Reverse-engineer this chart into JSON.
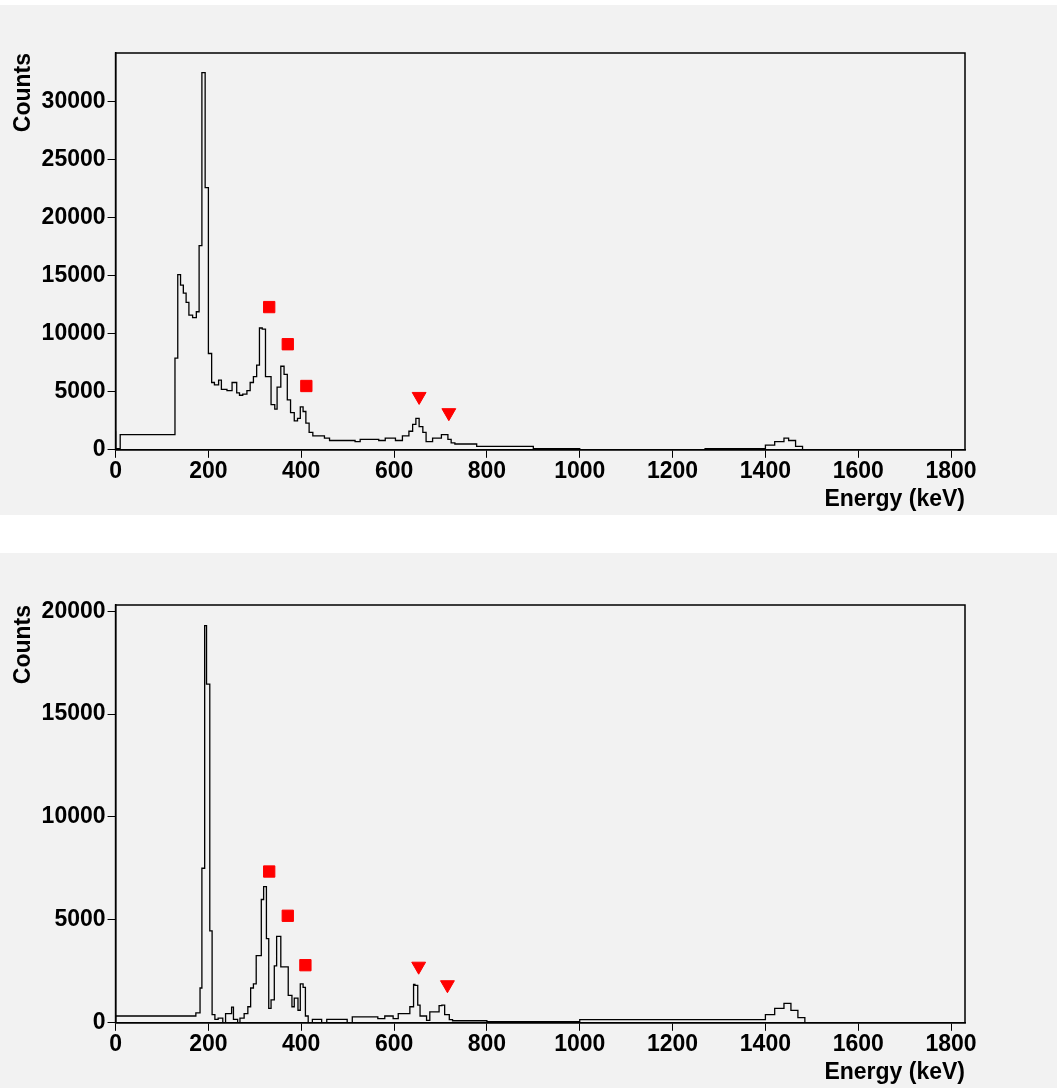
{
  "chart_data": [
    {
      "type": "step",
      "xlabel": "Energy (keV)",
      "ylabel": "Counts",
      "xlim": [
        0,
        1830
      ],
      "xticks": [
        0,
        200,
        400,
        600,
        800,
        1000,
        1200,
        1400,
        1600,
        1800
      ],
      "ylim": [
        0,
        34200
      ],
      "yticks": [
        0,
        5000,
        10000,
        15000,
        20000,
        25000,
        30000
      ],
      "grid": false,
      "series": [
        {
          "type": "step",
          "color": "#000000",
          "x": [
            0,
            10,
            128,
            134,
            140,
            146,
            152,
            158,
            166,
            174,
            180,
            186,
            193,
            200,
            207,
            213,
            222,
            228,
            240,
            251,
            261,
            267,
            274,
            283,
            290,
            297,
            304,
            310,
            316,
            323,
            335,
            343,
            348,
            356,
            363,
            370,
            377,
            385,
            392,
            398,
            404,
            410,
            417,
            425,
            450,
            461,
            516,
            527,
            567,
            581,
            603,
            618,
            632,
            640,
            647,
            654,
            662,
            669,
            683,
            702,
            709,
            716,
            723,
            731,
            753,
            778,
            900,
            1000,
            1270,
            1400,
            1420,
            1440,
            1450,
            1465,
            1480,
            1500,
            1830
          ],
          "values": [
            1600,
            100,
            1300,
            7900,
            15100,
            14200,
            13500,
            12700,
            11600,
            11400,
            11900,
            17600,
            32500,
            22600,
            8300,
            5800,
            5600,
            6000,
            5200,
            5100,
            5800,
            4900,
            4700,
            4800,
            5100,
            5800,
            6300,
            7300,
            10500,
            10400,
            6300,
            3900,
            3500,
            5400,
            7200,
            6500,
            4300,
            3200,
            2500,
            2700,
            3700,
            3300,
            2300,
            1500,
            1200,
            1000,
            800,
            700,
            900,
            800,
            1000,
            800,
            1200,
            1600,
            2200,
            2700,
            2000,
            1500,
            700,
            1000,
            1300,
            1300,
            900,
            600,
            500,
            500,
            300,
            100,
            0,
            100,
            400,
            700,
            1000,
            800,
            300,
            0,
            0
          ]
        },
        {
          "type": "scatter",
          "marker": "square",
          "color": "#ff0000",
          "x": [
            331,
            371,
            411
          ],
          "values": [
            12300,
            9100,
            5500
          ]
        },
        {
          "type": "scatter",
          "marker": "triangle",
          "color": "#ff0000",
          "x": [
            654,
            718
          ],
          "values": [
            4600,
            3200
          ]
        }
      ]
    },
    {
      "type": "step",
      "xlabel": "Energy (keV)",
      "ylabel": "Counts",
      "xlim": [
        0,
        1830
      ],
      "xticks": [
        0,
        200,
        400,
        600,
        800,
        1000,
        1200,
        1400,
        1600,
        1800
      ],
      "ylim": [
        0,
        20300
      ],
      "yticks": [
        0,
        5000,
        10000,
        15000,
        20000
      ],
      "grid": false,
      "series": [
        {
          "type": "step",
          "color": "#000000",
          "x": [
            0,
            173,
            182,
            186,
            192,
            196,
            203,
            208,
            214,
            221,
            231,
            237,
            250,
            254,
            263,
            268,
            277,
            285,
            291,
            297,
            303,
            314,
            319,
            325,
            330,
            335,
            342,
            347,
            356,
            372,
            380,
            385,
            393,
            398,
            404,
            409,
            415,
            424,
            444,
            455,
            499,
            510,
            565,
            580,
            598,
            609,
            634,
            642,
            645,
            651,
            656,
            670,
            677,
            697,
            703,
            709,
            719,
            726,
            800,
            1000,
            1400,
            1420,
            1440,
            1455,
            1470,
            1485,
            1500,
            1830
          ],
          "values": [
            0,
            330,
            480,
            1690,
            7510,
            19300,
            16460,
            4470,
            400,
            170,
            230,
            0,
            450,
            760,
            170,
            0,
            230,
            450,
            780,
            1690,
            1890,
            3260,
            5990,
            6620,
            4090,
            700,
            1110,
            2770,
            4200,
            2720,
            1330,
            780,
            1200,
            610,
            1890,
            1720,
            330,
            0,
            170,
            0,
            170,
            0,
            290,
            200,
            330,
            200,
            450,
            780,
            1860,
            1820,
            860,
            330,
            120,
            530,
            830,
            860,
            400,
            150,
            100,
            60,
            150,
            400,
            700,
            940,
            600,
            250,
            0,
            0
          ]
        },
        {
          "type": "scatter",
          "marker": "square",
          "color": "#ff0000",
          "x": [
            331,
            371,
            409
          ],
          "values": [
            7350,
            5200,
            2800
          ]
        },
        {
          "type": "scatter",
          "marker": "triangle",
          "color": "#ff0000",
          "x": [
            653,
            715
          ],
          "values": [
            2750,
            1850
          ]
        }
      ]
    }
  ]
}
